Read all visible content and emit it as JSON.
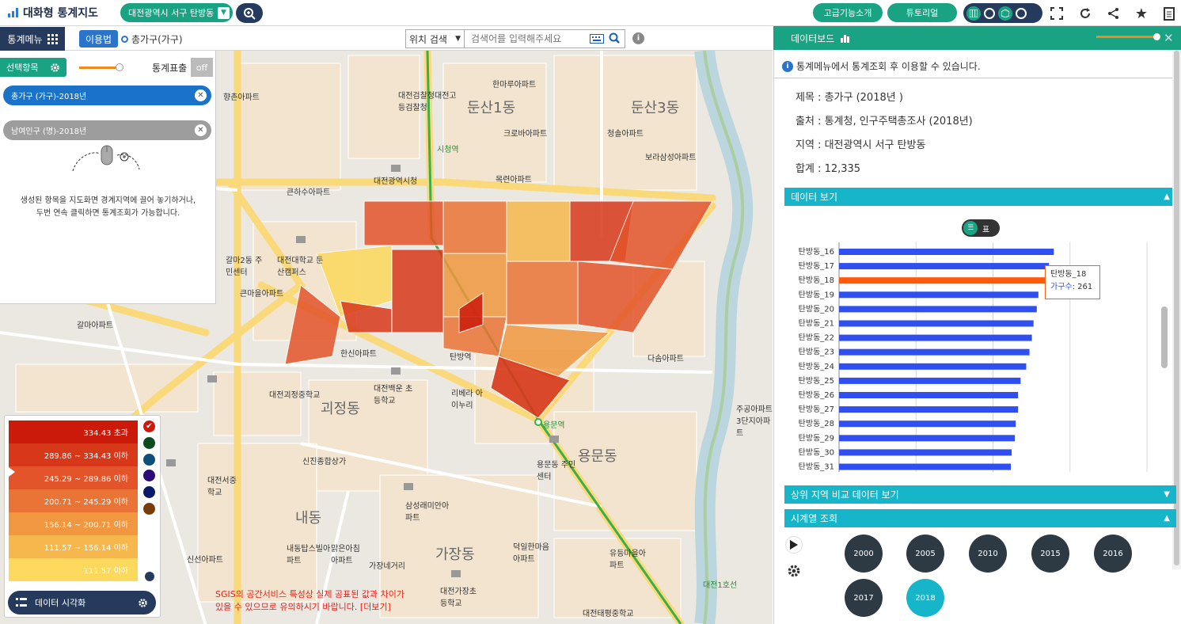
{
  "app": {
    "title": "대화형 통계지도",
    "region": "대전광역시 서구 탄방동"
  },
  "topbar": {
    "advanced_label": "고급기능소개",
    "tutorial_label": "튜토리얼"
  },
  "menubar": {
    "stat_menu_label": "통계메뉴",
    "guide_label": "이용법",
    "current_stat": "총가구(가구)"
  },
  "search": {
    "type": "위치 검색",
    "placeholder": "검색어를 입력해주세요"
  },
  "leftpanel": {
    "select_label": "선택항목",
    "stat_display_label": "통계표출",
    "stat_display_state": "off",
    "items": [
      {
        "label": "총가구 (가구)-2018년"
      },
      {
        "label": "남여인구 (명)-2018년"
      }
    ],
    "hint_line1": "생성된 항목을 지도화면 경계지역에 끌어 놓기하거나,",
    "hint_line2": "두번 연속 클릭하면 통계조회가 가능합니다."
  },
  "legend": {
    "rows": [
      {
        "label": "334.43 초과",
        "color": "#cc1a0a"
      },
      {
        "label": "289.86 ~ 334.43 이하",
        "color": "#d8381a"
      },
      {
        "label": "245.29 ~ 289.86 이하",
        "color": "#e3542a"
      },
      {
        "label": "200.71 ~ 245.29 이하",
        "color": "#ea7436"
      },
      {
        "label": "156.14 ~ 200.71 이하",
        "color": "#f0973f"
      },
      {
        "label": "111.57 ~ 156.14 이하",
        "color": "#f6b74d"
      },
      {
        "label": "111.57 이하",
        "color": "#fcd85c"
      }
    ],
    "palette": [
      "#cc1a0a",
      "#0d4a1e",
      "#0b4f7a",
      "#2c0a7a",
      "#0a1a6a",
      "#7a3a0a"
    ],
    "viz_label": "데이터 시각화"
  },
  "disclaimer": {
    "line1": "SGIS의 공간서비스 특성상 실제 공표된 값과 차이가",
    "line2": "있을 수 있으므로 유의하시기 바랍니다. [더보기]"
  },
  "map_labels": [
    {
      "text": "둔산1동",
      "cls": "big"
    },
    {
      "text": "둔산3동",
      "cls": "big"
    },
    {
      "text": "괴정동",
      "cls": "big"
    },
    {
      "text": "용문동",
      "cls": "big"
    },
    {
      "text": "내동",
      "cls": "big"
    },
    {
      "text": "가장동",
      "cls": "big"
    },
    {
      "text": "대전광역시청",
      "cls": "sm"
    },
    {
      "text": "대전검찰청대전고등검찰청",
      "cls": "sm"
    },
    {
      "text": "한마루아파트",
      "cls": "sm"
    },
    {
      "text": "크로바아파트",
      "cls": "sm"
    },
    {
      "text": "청솔아파트",
      "cls": "sm"
    },
    {
      "text": "목련아파트",
      "cls": "sm"
    },
    {
      "text": "시청역",
      "cls": "stn"
    },
    {
      "text": "탄방역",
      "cls": "stn"
    },
    {
      "text": "용문역",
      "cls": "stn"
    },
    {
      "text": "대전대학교 둔산캠퍼스",
      "cls": "sm"
    },
    {
      "text": "갈마2동 주민센터",
      "cls": "sm"
    },
    {
      "text": "큰마을아파트",
      "cls": "sm"
    },
    {
      "text": "갈마아파트",
      "cls": "sm"
    },
    {
      "text": "한신아파트",
      "cls": "sm"
    },
    {
      "text": "대전괴정중학교",
      "cls": "sm"
    },
    {
      "text": "대전백운 초등학교",
      "cls": "sm"
    },
    {
      "text": "리베라 아이누리",
      "cls": "sm"
    },
    {
      "text": "다솜아파트",
      "cls": "sm"
    },
    {
      "text": "신진종합상가",
      "cls": "sm"
    },
    {
      "text": "대전서중학교",
      "cls": "sm"
    },
    {
      "text": "용문동 주민센터",
      "cls": "sm"
    },
    {
      "text": "삼성래미안아파트",
      "cls": "sm"
    },
    {
      "text": "덕일한마음아파트",
      "cls": "sm"
    },
    {
      "text": "유등마을아파트",
      "cls": "sm"
    },
    {
      "text": "대전가장초등학교",
      "cls": "sm"
    },
    {
      "text": "대전태평중학교",
      "cls": "sm"
    },
    {
      "text": "신선아파트",
      "cls": "sm"
    },
    {
      "text": "내동탑스빌아파트",
      "cls": "sm"
    },
    {
      "text": "맑은아침아파트",
      "cls": "sm"
    },
    {
      "text": "가장네거리",
      "cls": "sm"
    },
    {
      "text": "향촌아파트",
      "cls": "sm"
    },
    {
      "text": "큰하수아파트",
      "cls": "sm"
    },
    {
      "text": "보라삼성아파트",
      "cls": "sm"
    },
    {
      "text": "주공아파트 3단지아파트",
      "cls": "sm"
    },
    {
      "text": "대전1호선",
      "cls": "stn"
    }
  ],
  "dashboard": {
    "title": "데이터보드",
    "notice": "통계메뉴에서 통계조회 후 이용할 수 있습니다.",
    "meta": {
      "subject": "제목 : 총가구 (2018년 )",
      "source": "출처 : 통계청, 인구주택총조사 (2018년)",
      "region": "지역 : 대전광역시 서구 탄방동",
      "total": "합계 : 12,335"
    },
    "data_view_label": "데이터 보기",
    "table_toggle_label": "표",
    "compare_label": "상위 지역 비교 데이터 보기",
    "timeseries_label": "시계열 조회",
    "years": [
      "2000",
      "2005",
      "2010",
      "2015",
      "2016",
      "2017",
      "2018"
    ],
    "active_year": "2018"
  },
  "chart_data": {
    "type": "bar",
    "orientation": "horizontal",
    "categories": [
      "탄방동_16",
      "탄방동_17",
      "탄방동_18",
      "탄방동_19",
      "탄방동_20",
      "탄방동_21",
      "탄방동_22",
      "탄방동_23",
      "탄방동_24",
      "탄방동_25",
      "탄방동_26",
      "탄방동_27",
      "탄방동_28",
      "탄방동_29",
      "탄방동_30",
      "탄방동_31"
    ],
    "series": [
      {
        "name": "가구수",
        "values": [
          265,
          259,
          261,
          246,
          244,
          240,
          238,
          235,
          231,
          224,
          221,
          221,
          218,
          217,
          213,
          212
        ]
      }
    ],
    "highlight": "탄방동_18",
    "highlight_color": "#fe5a0a",
    "bar_color": "#2f4ff0",
    "xlim": [
      0,
      380
    ],
    "grid": true,
    "tooltip": {
      "title": "탄방동_18",
      "series_label": "가구수",
      "value": "261"
    }
  }
}
